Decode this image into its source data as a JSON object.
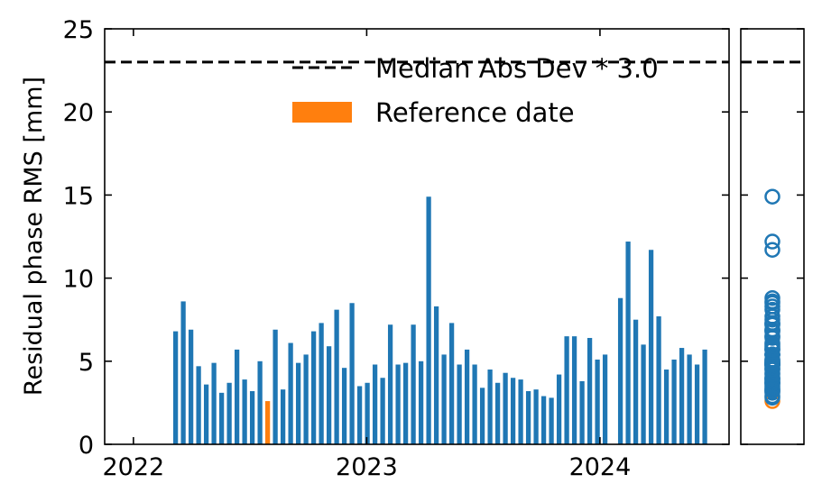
{
  "chart_data": [
    {
      "type": "bar",
      "ylabel": "Residual phase RMS [mm]",
      "ylim": [
        0,
        25
      ],
      "xlim": [
        "2021-11-17",
        "2024-07-21"
      ],
      "y_ticks": [
        "0",
        "5",
        "10",
        "15",
        "20",
        "25"
      ],
      "x_ticks": [
        {
          "date": "2022-01-01",
          "label": "2022"
        },
        {
          "date": "2023-01-01",
          "label": "2023"
        },
        {
          "date": "2024-01-01",
          "label": "2024"
        }
      ],
      "threshold": {
        "value": 23.0,
        "label": "Median Abs Dev * 3.0"
      },
      "legend": {
        "position": "top-right",
        "reference_label": "Reference date"
      },
      "colors": {
        "bars": "#1f77b4",
        "reference": "#ff7f0e"
      },
      "series": [
        {
          "dates": [
            "2022-03-08",
            "2022-03-20",
            "2022-04-01",
            "2022-04-13",
            "2022-04-25",
            "2022-05-07",
            "2022-05-19",
            "2022-05-31",
            "2022-06-12",
            "2022-06-24",
            "2022-07-06",
            "2022-07-18",
            "2022-07-30",
            "2022-08-11",
            "2022-08-23",
            "2022-09-04",
            "2022-09-16",
            "2022-09-28",
            "2022-10-10",
            "2022-10-22",
            "2022-11-03",
            "2022-11-15",
            "2022-11-27",
            "2022-12-09",
            "2022-12-21",
            "2023-01-02",
            "2023-01-14",
            "2023-01-26",
            "2023-02-07",
            "2023-02-19",
            "2023-03-03",
            "2023-03-15",
            "2023-03-27",
            "2023-04-08",
            "2023-04-20",
            "2023-05-02",
            "2023-05-14",
            "2023-05-26",
            "2023-06-07",
            "2023-06-19",
            "2023-07-01",
            "2023-07-13",
            "2023-07-25",
            "2023-08-06",
            "2023-08-18",
            "2023-08-30",
            "2023-09-11",
            "2023-09-23",
            "2023-10-05",
            "2023-10-17",
            "2023-10-29",
            "2023-11-10",
            "2023-11-22",
            "2023-12-04",
            "2023-12-16",
            "2023-12-28",
            "2024-01-09",
            "2024-02-02",
            "2024-02-14",
            "2024-02-26",
            "2024-03-09",
            "2024-03-21",
            "2024-04-02",
            "2024-04-14",
            "2024-04-26",
            "2024-05-08",
            "2024-05-20",
            "2024-06-01",
            "2024-06-13"
          ],
          "values": [
            6.8,
            8.6,
            6.9,
            4.7,
            3.6,
            4.9,
            3.1,
            3.7,
            5.7,
            3.9,
            3.2,
            5.0,
            2.6,
            6.9,
            3.3,
            6.1,
            4.9,
            5.4,
            6.8,
            7.3,
            5.9,
            8.1,
            4.6,
            8.5,
            3.5,
            3.7,
            4.8,
            4.0,
            7.2,
            4.8,
            4.9,
            7.2,
            5.0,
            14.9,
            8.3,
            5.4,
            7.3,
            4.8,
            5.7,
            4.8,
            3.4,
            4.5,
            3.7,
            4.3,
            4.0,
            3.9,
            3.2,
            3.3,
            2.9,
            2.8,
            4.2,
            6.5,
            6.5,
            3.8,
            6.4,
            5.1,
            5.4,
            8.8,
            12.2,
            7.5,
            6.0,
            11.7,
            7.7,
            4.5,
            5.1,
            5.8,
            5.4,
            4.8,
            5.7
          ],
          "reference_date": "2022-07-30"
        }
      ]
    },
    {
      "type": "scatter",
      "ylim": [
        0,
        25
      ],
      "values": [
        6.8,
        8.6,
        6.9,
        4.7,
        3.6,
        4.9,
        3.1,
        3.7,
        5.7,
        3.9,
        3.2,
        5.0,
        2.6,
        6.9,
        3.3,
        6.1,
        4.9,
        5.4,
        6.8,
        7.3,
        5.9,
        8.1,
        4.6,
        8.5,
        3.5,
        3.7,
        4.8,
        4.0,
        7.2,
        4.8,
        4.9,
        7.2,
        5.0,
        14.9,
        8.3,
        5.4,
        7.3,
        4.8,
        5.7,
        4.8,
        3.4,
        4.5,
        3.7,
        4.3,
        4.0,
        3.9,
        3.2,
        3.3,
        2.9,
        2.8,
        4.2,
        6.5,
        6.5,
        3.8,
        6.4,
        5.1,
        5.4,
        8.8,
        12.2,
        7.5,
        6.0,
        11.7,
        7.7,
        4.5,
        5.1,
        5.8,
        5.4,
        4.8,
        5.7
      ],
      "reference_value": 2.6,
      "threshold": 23.0
    }
  ]
}
